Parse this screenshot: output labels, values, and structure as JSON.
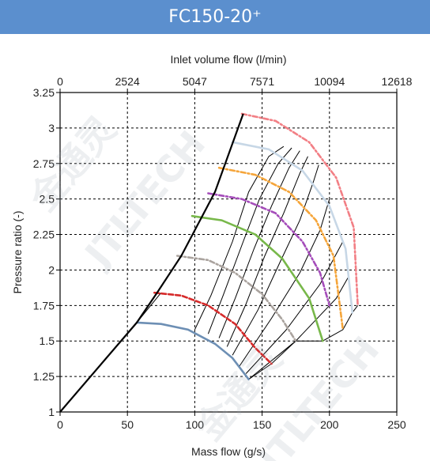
{
  "header": {
    "title": "FC150-20⁺"
  },
  "colors": {
    "header_bg": "#5b8fce",
    "surge_line": "#000000",
    "speed_lines": [
      "#6d8fb4",
      "#d62a2a",
      "#aaa39e",
      "#78b84a",
      "#a54dba",
      "#f5a53a",
      "#c7d7e6",
      "#f27f85"
    ]
  },
  "watermark": {
    "lines": [
      "金通灵",
      "JTLTECH"
    ]
  },
  "chart_data": {
    "type": "line",
    "xlabel": "Mass flow (g/s)",
    "ylabel": "Pressure ratio (-)",
    "x2label": "Inlet volume flow (l/min)",
    "xlim": [
      0,
      250
    ],
    "ylim": [
      1,
      3.25
    ],
    "x_ticks": [
      "0",
      "50",
      "100",
      "150",
      "200",
      "250"
    ],
    "y_ticks": [
      "1",
      "1.25",
      "1.5",
      "1.75",
      "2",
      "2.25",
      "2.5",
      "2.75",
      "3",
      "3.25"
    ],
    "x2_ticks": [
      "0",
      "2524",
      "5047",
      "7571",
      "10094",
      "12618"
    ],
    "grid": true,
    "surge_line": [
      [
        0,
        1
      ],
      [
        57,
        1.63
      ],
      [
        72,
        1.84
      ],
      [
        90,
        2.1
      ],
      [
        115,
        2.55
      ],
      [
        136,
        3.1
      ]
    ],
    "speed_lines": [
      {
        "points": [
          [
            57,
            1.63
          ],
          [
            75,
            1.62
          ],
          [
            95,
            1.58
          ],
          [
            115,
            1.48
          ],
          [
            128,
            1.38
          ],
          [
            140,
            1.23
          ]
        ]
      },
      {
        "points": [
          [
            70,
            1.84
          ],
          [
            90,
            1.82
          ],
          [
            110,
            1.75
          ],
          [
            130,
            1.62
          ],
          [
            145,
            1.45
          ],
          [
            157,
            1.34
          ]
        ]
      },
      {
        "points": [
          [
            87,
            2.1
          ],
          [
            110,
            2.07
          ],
          [
            130,
            1.98
          ],
          [
            150,
            1.83
          ],
          [
            165,
            1.65
          ],
          [
            175,
            1.5
          ]
        ]
      },
      {
        "points": [
          [
            98,
            2.38
          ],
          [
            120,
            2.35
          ],
          [
            145,
            2.25
          ],
          [
            165,
            2.08
          ],
          [
            185,
            1.8
          ],
          [
            195,
            1.5
          ]
        ]
      },
      {
        "points": [
          [
            110,
            2.54
          ],
          [
            135,
            2.5
          ],
          [
            160,
            2.4
          ],
          [
            180,
            2.2
          ],
          [
            193,
            1.98
          ],
          [
            200,
            1.75
          ]
        ]
      },
      {
        "points": [
          [
            118,
            2.72
          ],
          [
            145,
            2.67
          ],
          [
            170,
            2.55
          ],
          [
            190,
            2.35
          ],
          [
            203,
            2.1
          ],
          [
            210,
            1.58
          ]
        ]
      },
      {
        "points": [
          [
            128,
            2.9
          ],
          [
            155,
            2.85
          ],
          [
            180,
            2.7
          ],
          [
            200,
            2.45
          ],
          [
            212,
            2.15
          ],
          [
            217,
            1.7
          ]
        ]
      },
      {
        "points": [
          [
            135,
            3.1
          ],
          [
            160,
            3.05
          ],
          [
            185,
            2.9
          ],
          [
            205,
            2.65
          ],
          [
            218,
            2.3
          ],
          [
            221,
            1.75
          ]
        ]
      }
    ],
    "efficiency_lines": [
      {
        "points": [
          [
            57,
            1.63
          ],
          [
            75,
            1.84
          ]
        ]
      },
      {
        "points": [
          [
            100,
            1.58
          ],
          [
            112,
            1.82
          ],
          [
            128,
            2.2
          ],
          [
            140,
            2.55
          ],
          [
            155,
            2.8
          ],
          [
            166,
            2.87
          ]
        ]
      },
      {
        "points": [
          [
            110,
            1.55
          ],
          [
            121,
            1.82
          ],
          [
            136,
            2.2
          ],
          [
            148,
            2.5
          ],
          [
            162,
            2.75
          ],
          [
            172,
            2.86
          ]
        ]
      },
      {
        "points": [
          [
            118,
            1.52
          ],
          [
            130,
            1.8
          ],
          [
            144,
            2.15
          ],
          [
            157,
            2.45
          ],
          [
            170,
            2.72
          ],
          [
            178,
            2.84
          ]
        ]
      },
      {
        "points": [
          [
            124,
            1.46
          ],
          [
            138,
            1.76
          ],
          [
            152,
            2.1
          ],
          [
            166,
            2.4
          ],
          [
            178,
            2.68
          ],
          [
            184,
            2.8
          ]
        ]
      },
      {
        "points": [
          [
            128,
            1.4
          ],
          [
            147,
            1.72
          ],
          [
            163,
            2.05
          ],
          [
            178,
            2.35
          ],
          [
            188,
            2.62
          ],
          [
            192,
            2.74
          ]
        ]
      },
      {
        "points": [
          [
            133,
            1.32
          ],
          [
            157,
            1.66
          ],
          [
            178,
            1.98
          ],
          [
            193,
            2.28
          ],
          [
            200,
            2.5
          ]
        ]
      },
      {
        "points": [
          [
            138,
            1.27
          ],
          [
            168,
            1.58
          ],
          [
            193,
            1.9
          ],
          [
            210,
            2.2
          ]
        ]
      },
      {
        "points": [
          [
            140,
            1.23
          ],
          [
            175,
            1.5
          ],
          [
            205,
            1.8
          ],
          [
            214,
            1.95
          ]
        ]
      }
    ],
    "choke_line": [
      [
        140,
        1.23
      ],
      [
        157,
        1.34
      ],
      [
        175,
        1.5
      ],
      [
        195,
        1.5
      ],
      [
        210,
        1.58
      ],
      [
        217,
        1.7
      ],
      [
        221,
        1.75
      ]
    ]
  }
}
